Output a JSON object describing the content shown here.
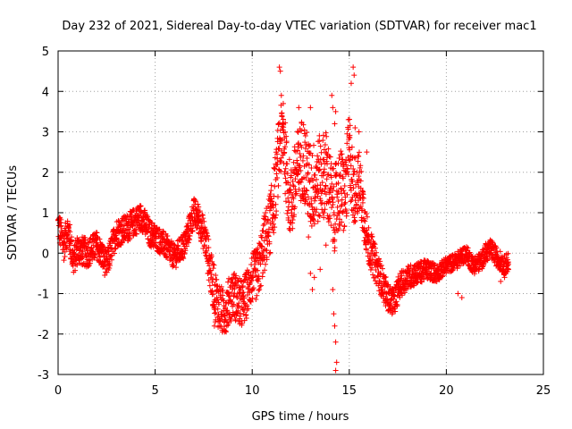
{
  "chart_data": {
    "type": "scatter",
    "title": "Day 232 of 2021, Sidereal Day-to-day VTEC variation (SDTVAR) for receiver mac1",
    "xlabel": "GPS time / hours",
    "ylabel": "SDTVAR / TECUs",
    "xlim": [
      0,
      25
    ],
    "ylim": [
      -3,
      5
    ],
    "xticks": [
      0,
      5,
      10,
      15,
      20,
      25
    ],
    "yticks": [
      -3,
      -2,
      -1,
      0,
      1,
      2,
      3,
      4,
      5
    ],
    "grid": true,
    "marker": "+",
    "color": "#ff0000",
    "series": [
      {
        "name": "SDTVAR mac1",
        "envelope": [
          [
            0.0,
            0.7
          ],
          [
            0.3,
            0.2
          ],
          [
            0.5,
            0.6
          ],
          [
            0.8,
            -0.2
          ],
          [
            1.0,
            0.1
          ],
          [
            1.5,
            0.0
          ],
          [
            2.0,
            0.2
          ],
          [
            2.5,
            -0.3
          ],
          [
            3.0,
            0.5
          ],
          [
            3.5,
            0.6
          ],
          [
            4.0,
            0.8
          ],
          [
            4.3,
            0.9
          ],
          [
            4.7,
            0.5
          ],
          [
            5.0,
            0.4
          ],
          [
            5.5,
            0.2
          ],
          [
            6.0,
            -0.1
          ],
          [
            6.5,
            0.2
          ],
          [
            6.8,
            0.7
          ],
          [
            7.0,
            1.0
          ],
          [
            7.3,
            0.8
          ],
          [
            7.6,
            0.3
          ],
          [
            7.9,
            -0.6
          ],
          [
            8.2,
            -1.2
          ],
          [
            8.5,
            -1.5
          ],
          [
            9.0,
            -1.0
          ],
          [
            9.5,
            -1.3
          ],
          [
            10.0,
            -0.6
          ],
          [
            10.3,
            -0.5
          ],
          [
            10.6,
            0.2
          ],
          [
            11.0,
            0.9
          ],
          [
            11.2,
            1.6
          ],
          [
            11.4,
            2.6
          ],
          [
            11.6,
            3.0
          ],
          [
            11.8,
            1.8
          ],
          [
            12.0,
            1.2
          ],
          [
            12.3,
            2.0
          ],
          [
            12.6,
            2.4
          ],
          [
            13.0,
            1.6
          ],
          [
            13.4,
            1.8
          ],
          [
            13.8,
            2.0
          ],
          [
            14.2,
            1.0
          ],
          [
            14.5,
            1.6
          ],
          [
            14.8,
            1.4
          ],
          [
            15.0,
            2.6
          ],
          [
            15.2,
            1.5
          ],
          [
            15.5,
            1.8
          ],
          [
            15.8,
            0.8
          ],
          [
            16.0,
            0.2
          ],
          [
            16.3,
            -0.2
          ],
          [
            16.6,
            -0.6
          ],
          [
            17.0,
            -1.1
          ],
          [
            17.3,
            -1.2
          ],
          [
            17.6,
            -0.8
          ],
          [
            18.0,
            -0.6
          ],
          [
            18.5,
            -0.5
          ],
          [
            19.0,
            -0.4
          ],
          [
            19.5,
            -0.5
          ],
          [
            20.0,
            -0.3
          ],
          [
            20.5,
            -0.2
          ],
          [
            21.0,
            0.0
          ],
          [
            21.4,
            -0.3
          ],
          [
            21.8,
            -0.2
          ],
          [
            22.0,
            0.0
          ],
          [
            22.3,
            0.1
          ],
          [
            22.6,
            -0.1
          ],
          [
            23.0,
            -0.3
          ],
          [
            23.2,
            -0.2
          ]
        ],
        "spread_by_hour": [
          [
            0,
            0.4
          ],
          [
            2,
            0.35
          ],
          [
            4,
            0.35
          ],
          [
            6,
            0.3
          ],
          [
            7.5,
            0.4
          ],
          [
            8,
            0.6
          ],
          [
            10,
            0.6
          ],
          [
            11,
            0.8
          ],
          [
            13,
            1.1
          ],
          [
            15,
            1.0
          ],
          [
            16,
            0.5
          ],
          [
            17,
            0.35
          ],
          [
            20,
            0.2
          ],
          [
            23.2,
            0.25
          ]
        ],
        "outliers": [
          [
            11.4,
            4.6
          ],
          [
            11.45,
            4.5
          ],
          [
            11.5,
            3.9
          ],
          [
            11.6,
            3.7
          ],
          [
            12.4,
            3.6
          ],
          [
            13.0,
            3.6
          ],
          [
            14.1,
            3.9
          ],
          [
            14.15,
            3.6
          ],
          [
            14.3,
            3.5
          ],
          [
            14.25,
            3.2
          ],
          [
            15.2,
            4.6
          ],
          [
            15.25,
            4.4
          ],
          [
            15.1,
            4.2
          ],
          [
            15.3,
            3.1
          ],
          [
            15.5,
            3.0
          ],
          [
            15.9,
            2.5
          ],
          [
            12.9,
            0.4
          ],
          [
            13.0,
            -0.5
          ],
          [
            13.1,
            -0.9
          ],
          [
            13.2,
            -0.6
          ],
          [
            13.5,
            -0.4
          ],
          [
            13.8,
            0.2
          ],
          [
            14.2,
            -1.5
          ],
          [
            14.25,
            -1.8
          ],
          [
            14.3,
            -2.2
          ],
          [
            14.35,
            -2.7
          ],
          [
            14.3,
            -2.9
          ],
          [
            14.15,
            -0.9
          ],
          [
            8.1,
            -1.7
          ],
          [
            8.05,
            -1.8
          ],
          [
            20.6,
            -1.0
          ],
          [
            20.8,
            -1.1
          ],
          [
            22.8,
            -0.7
          ],
          [
            23.0,
            -0.6
          ],
          [
            23.2,
            -0.4
          ]
        ]
      }
    ]
  }
}
